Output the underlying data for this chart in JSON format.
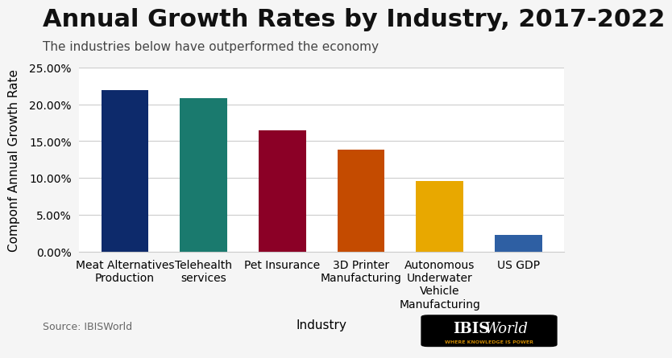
{
  "title": "Annual Growth Rates by Industry, 2017-2022",
  "subtitle": "The industries below have outperformed the economy",
  "xlabel": "Industry",
  "ylabel": "Componf Annual Growth Rate",
  "source": "Source: IBISWorld",
  "categories": [
    "Meat Alternatives\nProduction",
    "Telehealth\nservices",
    "Pet Insurance",
    "3D Printer\nManufacturing",
    "Autonomous\nUnderwater\nVehicle\nManufacturing",
    "US GDP"
  ],
  "values": [
    0.219,
    0.209,
    0.165,
    0.138,
    0.096,
    0.022
  ],
  "bar_colors": [
    "#0d2a6b",
    "#1a7a6e",
    "#8b0026",
    "#c44b00",
    "#e8a800",
    "#2e5fa3"
  ],
  "ylim": [
    0,
    0.25
  ],
  "yticks": [
    0.0,
    0.05,
    0.1,
    0.15,
    0.2,
    0.25
  ],
  "ytick_labels": [
    "0.00%",
    "5.00%",
    "10.00%",
    "15.00%",
    "20.00%",
    "25.00%"
  ],
  "background_color": "#f5f5f5",
  "plot_bg_color": "#ffffff",
  "title_fontsize": 22,
  "subtitle_fontsize": 11,
  "axis_label_fontsize": 11,
  "tick_fontsize": 10,
  "source_fontsize": 9
}
